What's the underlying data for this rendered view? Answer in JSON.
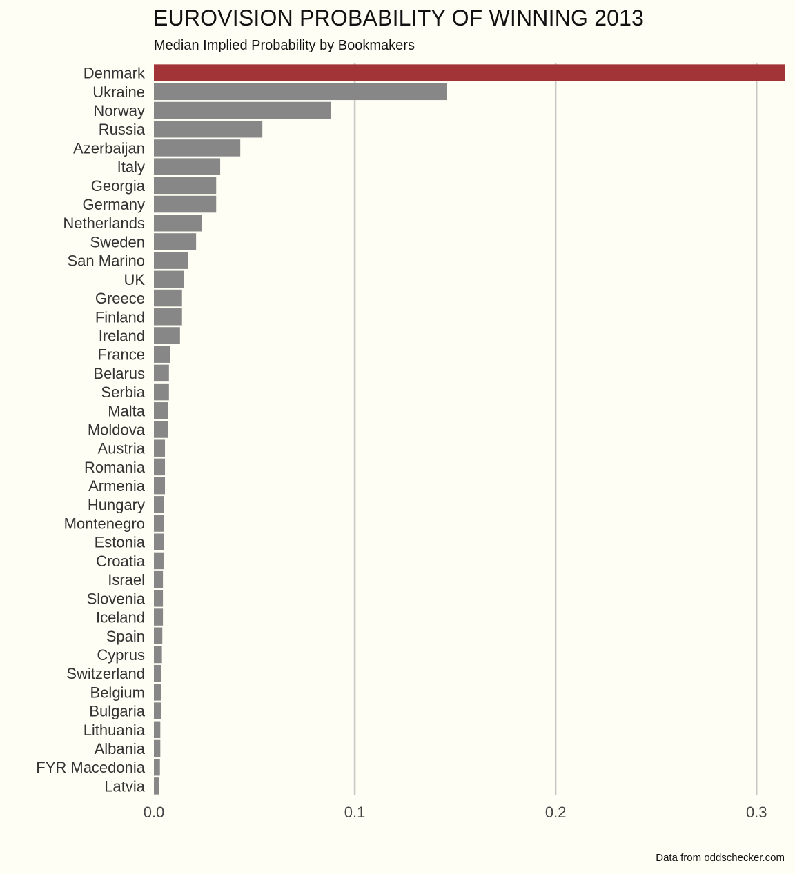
{
  "chart_data": {
    "type": "bar",
    "orientation": "horizontal",
    "title": "EUROVISION PROBABILITY OF WINNING 2013",
    "subtitle": "Median Implied Probability by Bookmakers",
    "xlabel": "",
    "ylabel": "",
    "xlim": [
      0,
      0.314
    ],
    "xticks": [
      "0.0",
      "0.1",
      "0.2",
      "0.3"
    ],
    "xtick_values": [
      0,
      0.1,
      0.2,
      0.3
    ],
    "grid": "vertical",
    "highlight_color": "#a23336",
    "bar_color": "#878787",
    "grid_color": "#c8c8c4",
    "categories": [
      "Denmark",
      "Ukraine",
      "Norway",
      "Russia",
      "Azerbaijan",
      "Italy",
      "Georgia",
      "Germany",
      "Netherlands",
      "Sweden",
      "San Marino",
      "UK",
      "Greece",
      "Finland",
      "Ireland",
      "France",
      "Belarus",
      "Serbia",
      "Malta",
      "Moldova",
      "Austria",
      "Romania",
      "Armenia",
      "Hungary",
      "Montenegro",
      "Estonia",
      "Croatia",
      "Israel",
      "Slovenia",
      "Iceland",
      "Spain",
      "Cyprus",
      "Switzerland",
      "Belgium",
      "Bulgaria",
      "Lithuania",
      "Albania",
      "FYR Macedonia",
      "Latvia"
    ],
    "values": [
      0.314,
      0.146,
      0.088,
      0.054,
      0.043,
      0.033,
      0.031,
      0.031,
      0.024,
      0.021,
      0.017,
      0.015,
      0.014,
      0.014,
      0.013,
      0.008,
      0.0075,
      0.0075,
      0.007,
      0.007,
      0.0055,
      0.0055,
      0.0055,
      0.005,
      0.005,
      0.005,
      0.0048,
      0.0045,
      0.0045,
      0.0045,
      0.0042,
      0.004,
      0.0035,
      0.0035,
      0.0035,
      0.0032,
      0.0032,
      0.003,
      0.0025
    ],
    "highlight": "Denmark",
    "source": "Data from oddschecker.com"
  }
}
